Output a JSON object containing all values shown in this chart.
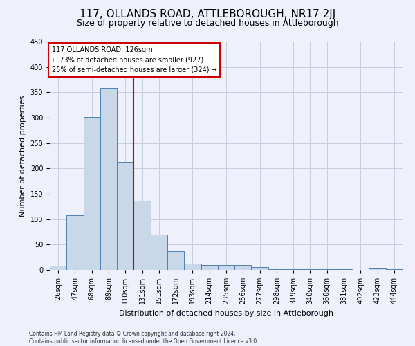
{
  "title1": "117, OLLANDS ROAD, ATTLEBOROUGH, NR17 2JJ",
  "title2": "Size of property relative to detached houses in Attleborough",
  "xlabel": "Distribution of detached houses by size in Attleborough",
  "ylabel": "Number of detached properties",
  "categories": [
    "26sqm",
    "47sqm",
    "68sqm",
    "89sqm",
    "110sqm",
    "131sqm",
    "151sqm",
    "172sqm",
    "193sqm",
    "214sqm",
    "235sqm",
    "256sqm",
    "277sqm",
    "298sqm",
    "319sqm",
    "340sqm",
    "360sqm",
    "381sqm",
    "402sqm",
    "423sqm",
    "444sqm"
  ],
  "values": [
    8,
    108,
    302,
    359,
    213,
    136,
    70,
    37,
    12,
    10,
    9,
    9,
    5,
    2,
    1,
    1,
    1,
    1,
    0,
    3,
    1
  ],
  "bar_color": "#c8d8e8",
  "bar_edge_color": "#5080b0",
  "annotation_line1": "117 OLLANDS ROAD: 126sqm",
  "annotation_line2": "← 73% of detached houses are smaller (927)",
  "annotation_line3": "25% of semi-detached houses are larger (324) →",
  "annotation_box_edge": "#cc0000",
  "ref_line_color": "#cc0000",
  "ref_line_x": 4.5,
  "ylim": [
    0,
    450
  ],
  "yticks": [
    0,
    50,
    100,
    150,
    200,
    250,
    300,
    350,
    400,
    450
  ],
  "footer1": "Contains HM Land Registry data © Crown copyright and database right 2024.",
  "footer2": "Contains public sector information licensed under the Open Government Licence v3.0.",
  "background_color": "#eef0fb",
  "grid_color": "#c8cce0",
  "title1_fontsize": 11,
  "title2_fontsize": 9,
  "xlabel_fontsize": 8,
  "ylabel_fontsize": 8,
  "tick_fontsize": 7,
  "annot_fontsize": 7,
  "footer_fontsize": 5.5
}
